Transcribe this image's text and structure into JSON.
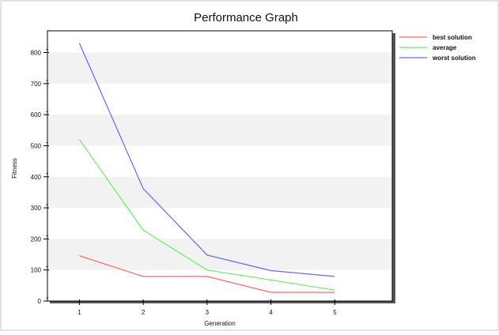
{
  "chart_data": {
    "type": "line",
    "title": "Performance Graph",
    "xlabel": "Generation",
    "ylabel": "Fitness",
    "x": [
      1,
      2,
      3,
      4,
      5
    ],
    "xlim": [
      0.5,
      5.9
    ],
    "ylim": [
      0,
      870
    ],
    "yticks": [
      0,
      100,
      200,
      300,
      400,
      500,
      600,
      700,
      800
    ],
    "grid": "horizontal bands",
    "legend_position": "right",
    "series": [
      {
        "name": "best solution",
        "color": "#ff6666",
        "values": [
          146,
          79,
          79,
          28,
          28
        ]
      },
      {
        "name": "average",
        "color": "#66ee66",
        "values": [
          520,
          228,
          100,
          68,
          35
        ]
      },
      {
        "name": "worst solution",
        "color": "#6666ff",
        "values": [
          830,
          362,
          148,
          98,
          79
        ]
      }
    ]
  }
}
